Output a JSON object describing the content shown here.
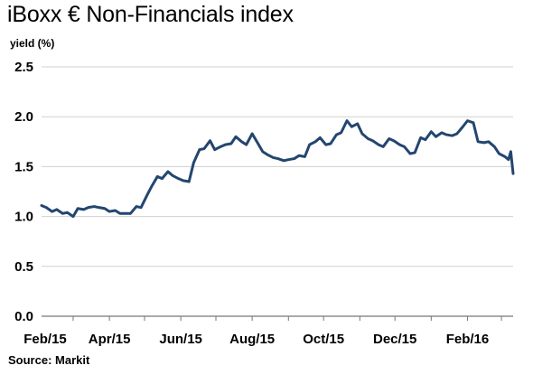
{
  "chart_data": {
    "type": "line",
    "title": "iBoxx € Non-Financials index",
    "ylabel": "yield (%)",
    "xlabel": "",
    "source": "Source: Markit",
    "ylim": [
      0,
      2.5
    ],
    "y_ticks": [
      "0.0",
      "0.5",
      "1.0",
      "1.5",
      "2.0",
      "2.5"
    ],
    "x_tick_labels": [
      "Feb/15",
      "Apr/15",
      "Jun/15",
      "Aug/15",
      "Oct/15",
      "Dec/15",
      "Feb/16"
    ],
    "grid": "horizontal",
    "line_color": "#23466f",
    "series": [
      {
        "x": [
          "2015-02-02",
          "2015-02-06",
          "2015-02-11",
          "2015-02-15",
          "2015-02-20",
          "2015-02-24",
          "2015-03-01",
          "2015-03-05",
          "2015-03-10",
          "2015-03-14",
          "2015-03-19",
          "2015-03-23",
          "2015-03-28",
          "2015-04-01",
          "2015-04-06",
          "2015-04-10",
          "2015-04-15",
          "2015-04-19",
          "2015-04-24",
          "2015-04-28",
          "2015-05-03",
          "2015-05-07",
          "2015-05-12",
          "2015-05-16",
          "2015-05-21",
          "2015-05-25",
          "2015-05-30",
          "2015-06-03",
          "2015-06-08",
          "2015-06-12",
          "2015-06-17",
          "2015-06-21",
          "2015-06-26",
          "2015-06-30",
          "2015-07-05",
          "2015-07-09",
          "2015-07-14",
          "2015-07-18",
          "2015-07-23",
          "2015-07-27",
          "2015-08-01",
          "2015-08-05",
          "2015-08-10",
          "2015-08-14",
          "2015-08-19",
          "2015-08-23",
          "2015-08-28",
          "2015-09-01",
          "2015-09-06",
          "2015-09-10",
          "2015-09-15",
          "2015-09-19",
          "2015-09-24",
          "2015-09-28",
          "2015-10-03",
          "2015-10-07",
          "2015-10-12",
          "2015-10-16",
          "2015-10-21",
          "2015-10-25",
          "2015-10-30",
          "2015-11-03",
          "2015-11-08",
          "2015-11-12",
          "2015-11-17",
          "2015-11-21",
          "2015-11-26",
          "2015-11-30",
          "2015-12-05",
          "2015-12-09",
          "2015-12-14",
          "2015-12-18",
          "2015-12-23",
          "2015-12-27",
          "2016-01-01",
          "2016-01-05",
          "2016-01-10",
          "2016-01-14",
          "2016-01-19",
          "2016-01-23",
          "2016-01-28",
          "2016-02-01",
          "2016-02-06",
          "2016-02-10",
          "2016-02-15",
          "2016-02-19",
          "2016-02-24",
          "2016-02-28",
          "2016-03-04",
          "2016-03-07",
          "2016-03-09",
          "2016-03-11"
        ],
        "values": [
          1.11,
          1.09,
          1.05,
          1.07,
          1.03,
          1.04,
          1.0,
          1.08,
          1.07,
          1.09,
          1.1,
          1.09,
          1.08,
          1.05,
          1.06,
          1.03,
          1.03,
          1.03,
          1.1,
          1.09,
          1.21,
          1.3,
          1.4,
          1.38,
          1.45,
          1.41,
          1.38,
          1.36,
          1.35,
          1.54,
          1.67,
          1.68,
          1.76,
          1.67,
          1.7,
          1.72,
          1.73,
          1.8,
          1.75,
          1.72,
          1.83,
          1.75,
          1.65,
          1.62,
          1.59,
          1.58,
          1.56,
          1.57,
          1.58,
          1.61,
          1.6,
          1.72,
          1.75,
          1.79,
          1.72,
          1.73,
          1.82,
          1.84,
          1.96,
          1.9,
          1.93,
          1.83,
          1.78,
          1.76,
          1.72,
          1.7,
          1.78,
          1.76,
          1.72,
          1.7,
          1.63,
          1.64,
          1.79,
          1.77,
          1.85,
          1.8,
          1.84,
          1.82,
          1.81,
          1.83,
          1.9,
          1.96,
          1.94,
          1.75,
          1.74,
          1.75,
          1.7,
          1.63,
          1.6,
          1.57,
          1.65,
          1.43
        ]
      }
    ]
  }
}
